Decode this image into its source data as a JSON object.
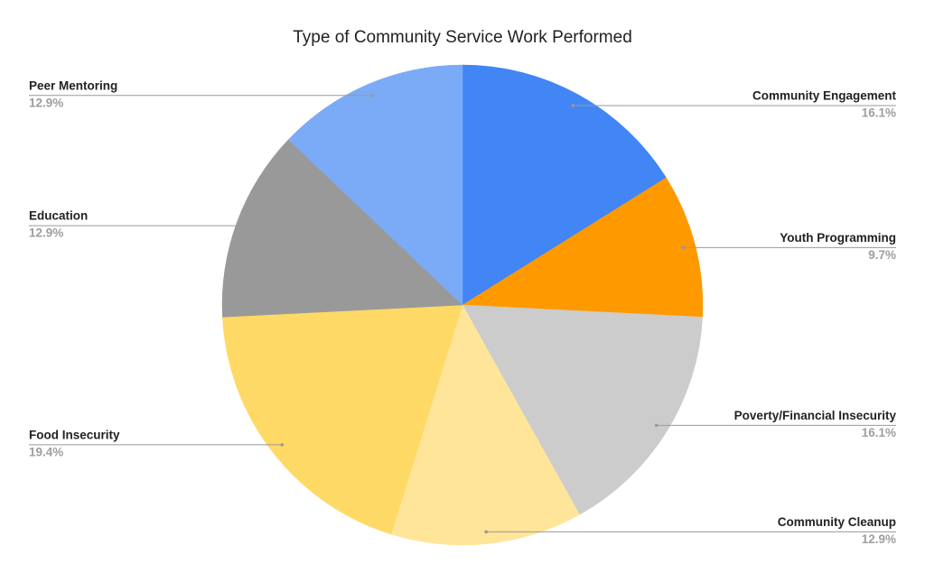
{
  "chart_data": {
    "type": "pie",
    "title": "Type of Community Service Work Performed",
    "categories": [
      "Community Engagement",
      "Youth Programming",
      "Poverty/Financial Insecurity",
      "Community Cleanup",
      "Food Insecurity",
      "Education",
      "Peer Mentoring"
    ],
    "values": [
      16.1,
      9.7,
      16.1,
      12.9,
      19.4,
      12.9,
      12.9
    ],
    "value_labels": [
      "16.1%",
      "9.7%",
      "16.1%",
      "12.9%",
      "19.4%",
      "12.9%",
      "12.9%"
    ],
    "colors": [
      "#4285f4",
      "#ff9900",
      "#cccccc",
      "#ffe599",
      "#ffd966",
      "#999999",
      "#7baaf7"
    ]
  }
}
